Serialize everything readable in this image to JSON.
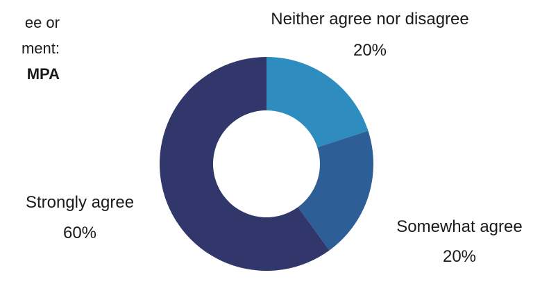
{
  "side_text": {
    "line1": "ee   or",
    "line2": "ment:",
    "line3": "MPA"
  },
  "chart_data": {
    "type": "pie",
    "donut": true,
    "categories": [
      "Neither agree nor disagree",
      "Somewhat agree",
      "Strongly agree"
    ],
    "values": [
      20,
      20,
      60
    ],
    "value_labels": [
      "20%",
      "20%",
      "60%"
    ],
    "colors": [
      "#2E8CBF",
      "#2E5E96",
      "#31366B"
    ],
    "title": "",
    "legend": "none"
  }
}
